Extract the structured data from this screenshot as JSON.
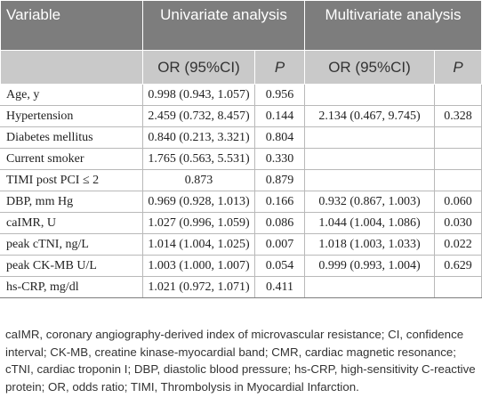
{
  "table": {
    "header": {
      "variable": "Variable",
      "univariate": "Univariate analysis",
      "multivariate": "Multivariate analysis",
      "or_label": "OR (95%CI)",
      "p_label": "P"
    },
    "rows": [
      {
        "variable": "Age, y",
        "uni_or": "0.998 (0.943, 1.057)",
        "uni_p": "0.956",
        "multi_or": "",
        "multi_p": ""
      },
      {
        "variable": "Hypertension",
        "uni_or": "2.459 (0.732, 8.457)",
        "uni_p": "0.144",
        "multi_or": "2.134 (0.467, 9.745)",
        "multi_p": "0.328"
      },
      {
        "variable": "Diabetes mellitus",
        "uni_or": "0.840 (0.213, 3.321)",
        "uni_p": "0.804",
        "multi_or": "",
        "multi_p": ""
      },
      {
        "variable": "Current smoker",
        "uni_or": "1.765 (0.563, 5.531)",
        "uni_p": "0.330",
        "multi_or": "",
        "multi_p": ""
      },
      {
        "variable": "TIMI post PCI ≤ 2",
        "uni_or": "0.873",
        "uni_p": "0.879",
        "multi_or": "",
        "multi_p": ""
      },
      {
        "variable": "DBP, mm Hg",
        "uni_or": "0.969 (0.928, 1.013)",
        "uni_p": "0.166",
        "multi_or": "0.932 (0.867, 1.003)",
        "multi_p": "0.060"
      },
      {
        "variable": "caIMR, U",
        "uni_or": "1.027 (0.996, 1.059)",
        "uni_p": "0.086",
        "multi_or": "1.044 (1.004, 1.086)",
        "multi_p": "0.030"
      },
      {
        "variable": "peak cTNI, ng/L",
        "uni_or": "1.014 (1.004, 1.025)",
        "uni_p": "0.007",
        "multi_or": "1.018 (1.003, 1.033)",
        "multi_p": "0.022"
      },
      {
        "variable": "peak CK-MB U/L",
        "uni_or": "1.003 (1.000, 1.007)",
        "uni_p": "0.054",
        "multi_or": "0.999 (0.993, 1.004)",
        "multi_p": "0.629"
      },
      {
        "variable": "hs-CRP, mg/dl",
        "uni_or": "1.021 (0.972, 1.071)",
        "uni_p": "0.411",
        "multi_or": "",
        "multi_p": ""
      }
    ]
  },
  "footnote": "caIMR, coronary angiography-derived index of microvascular resistance; CI, confidence interval; CK-MB, creatine kinase-myocardial band; CMR, cardiac magnetic resonance; cTNI, cardiac troponin I; DBP, diastolic blood pressure; hs-CRP, high-sensitivity C-reactive protein; OR, odds ratio; TIMI, Thrombolysis in Myocardial Infarction."
}
